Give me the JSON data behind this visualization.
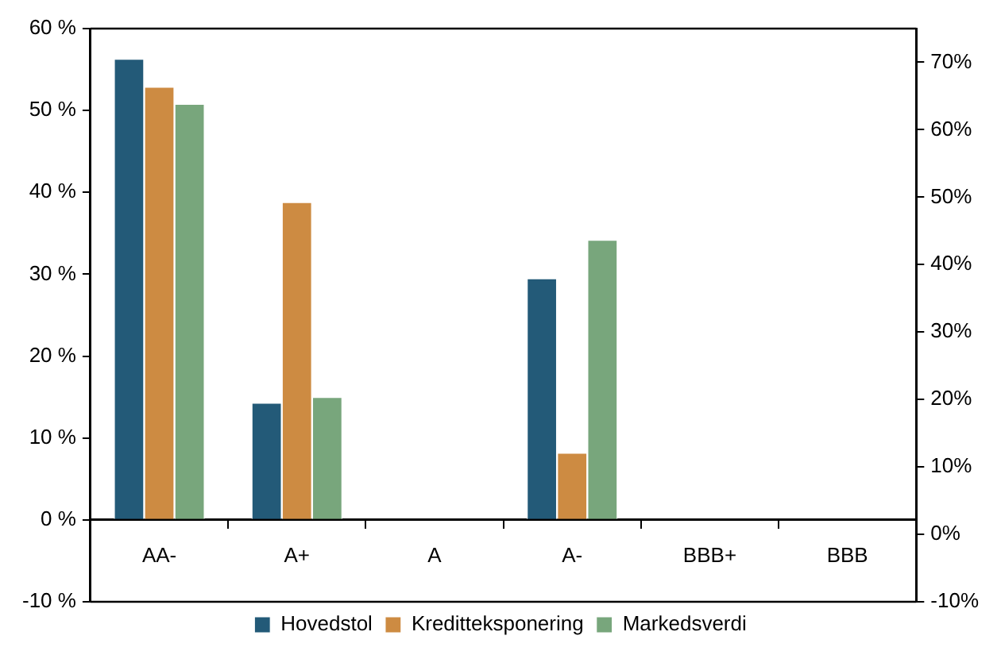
{
  "chart_data": {
    "type": "bar",
    "categories": [
      "AA-",
      "A+",
      "A",
      "A-",
      "BBB+",
      "BBB"
    ],
    "series": [
      {
        "name": "Hovedstol",
        "color": "#235a78",
        "values": [
          56.3,
          14.3,
          null,
          29.5,
          null,
          null
        ]
      },
      {
        "name": "Kreditteksponering",
        "color": "#cd8b42",
        "values": [
          52.9,
          38.8,
          null,
          8.2,
          null,
          null
        ]
      },
      {
        "name": "Markedsverdi",
        "color": "#78a67c",
        "values": [
          50.8,
          15.0,
          null,
          34.2,
          null,
          null
        ]
      }
    ],
    "ylim": [
      -10,
      60
    ],
    "yticks": [
      {
        "value": -10,
        "label": "-10 %"
      },
      {
        "value": 0,
        "label": "0 %"
      },
      {
        "value": 10,
        "label": "10 %"
      },
      {
        "value": 20,
        "label": "20 %"
      },
      {
        "value": 30,
        "label": "30 %"
      },
      {
        "value": 40,
        "label": "40 %"
      },
      {
        "value": 50,
        "label": "50 %"
      },
      {
        "value": 60,
        "label": "60 %"
      }
    ],
    "y2lim": [
      -10,
      75
    ],
    "y2ticks": [
      {
        "value": -10,
        "label": "-10%"
      },
      {
        "value": 0,
        "label": "0%"
      },
      {
        "value": 10,
        "label": "10%"
      },
      {
        "value": 20,
        "label": "20%"
      },
      {
        "value": 30,
        "label": "30%"
      },
      {
        "value": 40,
        "label": "40%"
      },
      {
        "value": 50,
        "label": "50%"
      },
      {
        "value": 60,
        "label": "60%"
      },
      {
        "value": 70,
        "label": "70%"
      }
    ],
    "grid": false,
    "legend": "bottom"
  }
}
